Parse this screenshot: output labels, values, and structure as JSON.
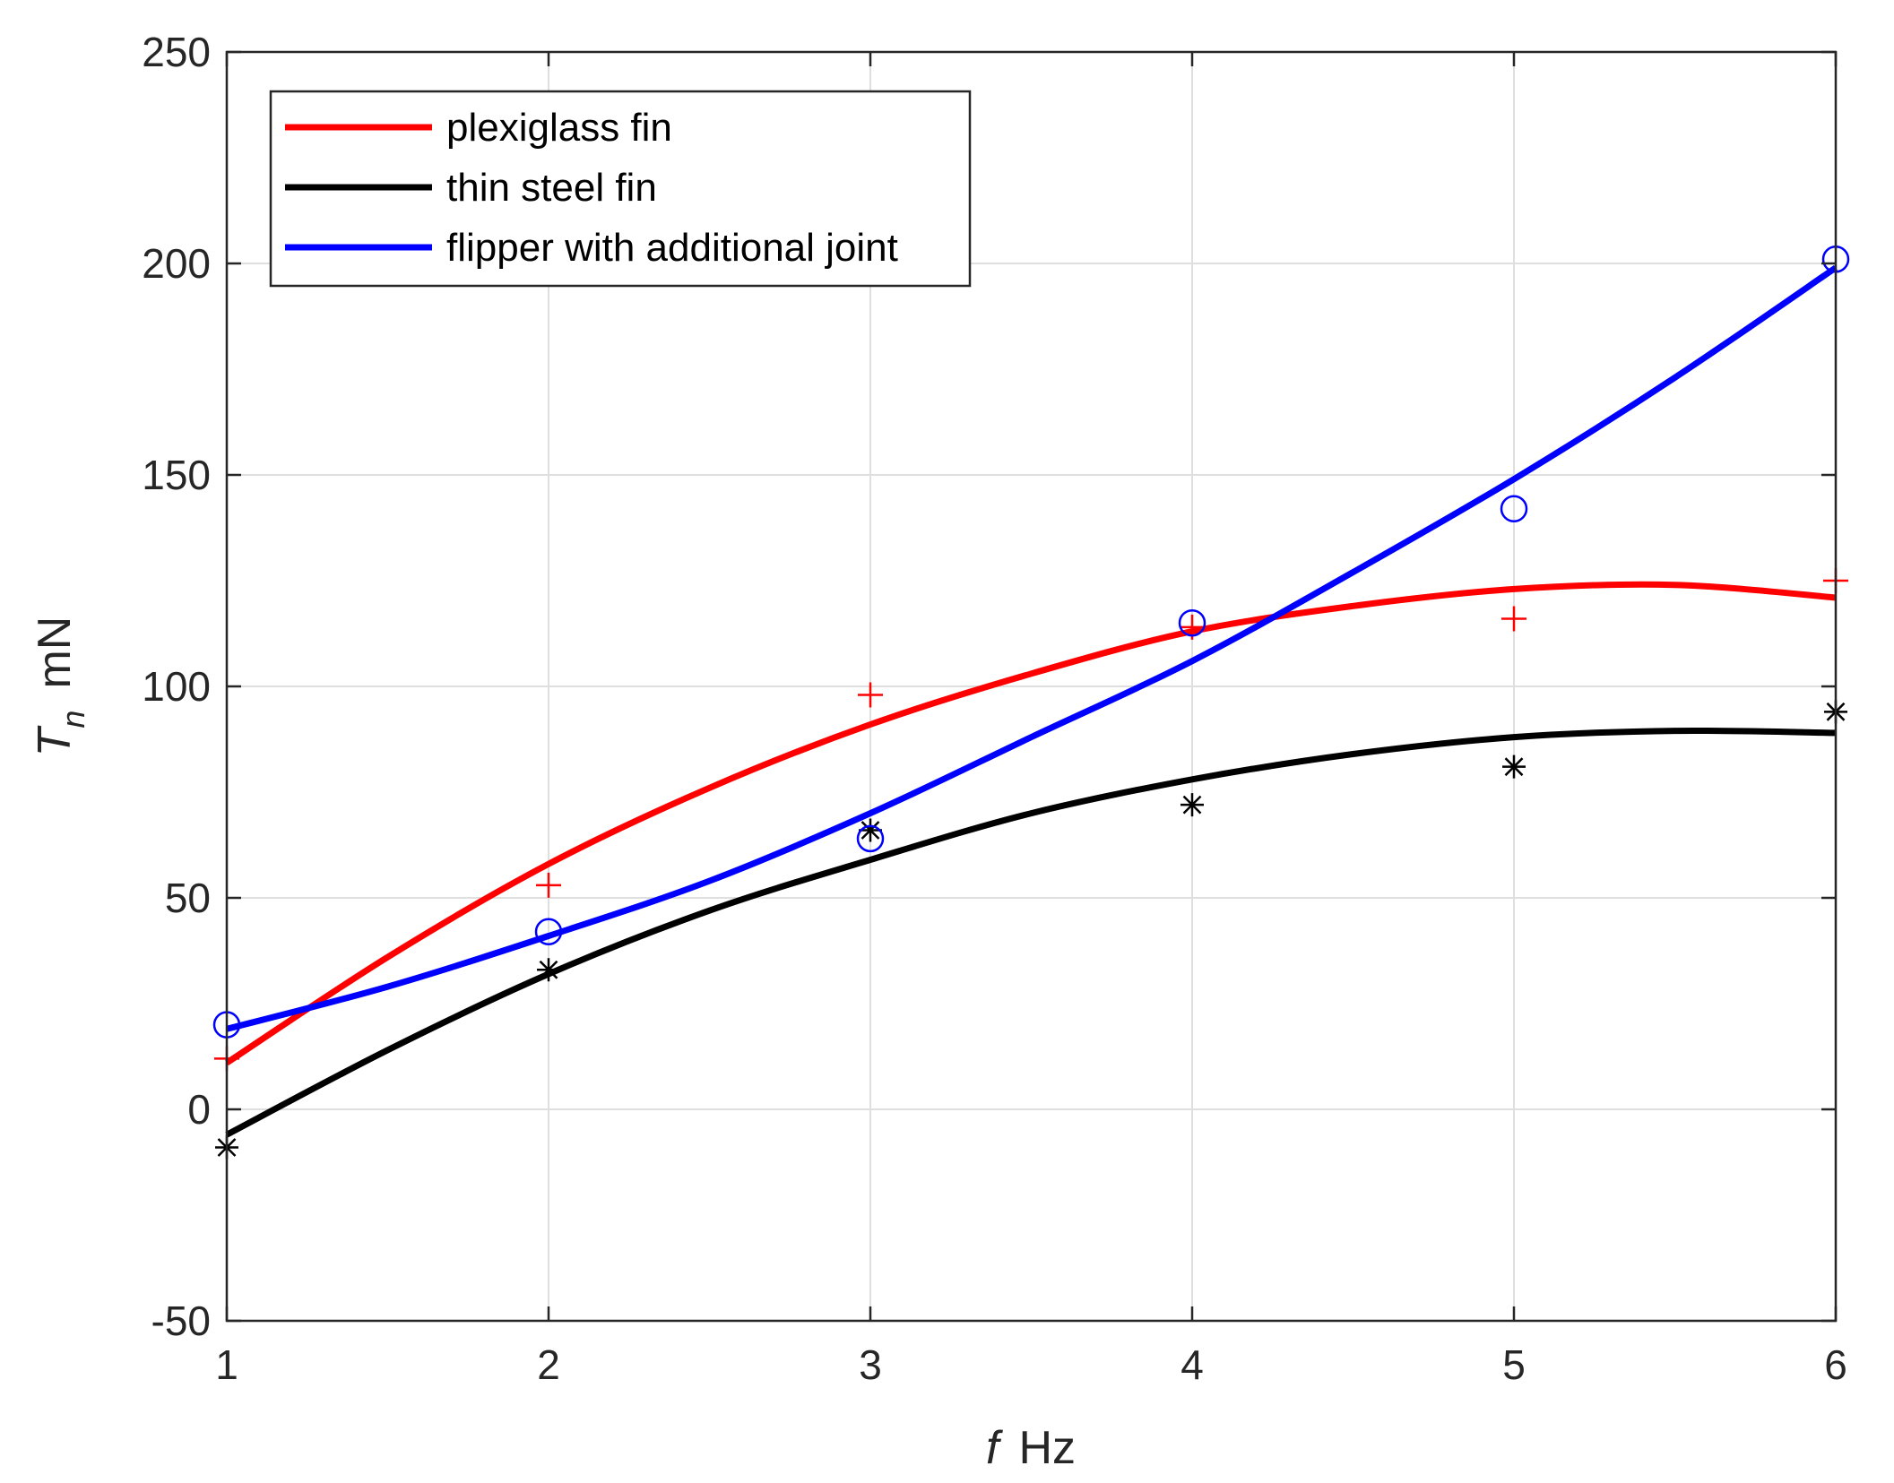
{
  "chart_data": {
    "type": "line",
    "x_ticks": [
      "1",
      "2",
      "3",
      "4",
      "5",
      "6"
    ],
    "y_ticks": [
      "-50",
      "0",
      "50",
      "100",
      "150",
      "200",
      "250"
    ],
    "xlim": [
      1,
      6
    ],
    "ylim": [
      -50,
      250
    ],
    "grid": true,
    "legend_position": "top-left",
    "xlabel": {
      "symbol": "f",
      "unit": "Hz"
    },
    "ylabel": {
      "symbol": "T",
      "subscript": "n",
      "unit": "mN"
    },
    "series": [
      {
        "name": "plexiglass fin",
        "color": "#ff0000",
        "marker": "plus",
        "points": {
          "x": [
            1,
            2,
            3,
            4,
            5,
            6
          ],
          "y": [
            12,
            53,
            98,
            114,
            116,
            125
          ]
        },
        "fit": [
          [
            1,
            11
          ],
          [
            1.5,
            36
          ],
          [
            2,
            58
          ],
          [
            2.5,
            76
          ],
          [
            3,
            91
          ],
          [
            3.5,
            103
          ],
          [
            4,
            113
          ],
          [
            4.5,
            119
          ],
          [
            5,
            123
          ],
          [
            5.5,
            124
          ],
          [
            6,
            121
          ]
        ]
      },
      {
        "name": "thin steel fin",
        "color": "#000000",
        "marker": "asterisk",
        "points": {
          "x": [
            1,
            2,
            3,
            4,
            5,
            6
          ],
          "y": [
            -9,
            33,
            66,
            72,
            81,
            94
          ]
        },
        "fit": [
          [
            1,
            -6
          ],
          [
            1.5,
            14
          ],
          [
            2,
            32
          ],
          [
            2.5,
            47
          ],
          [
            3,
            59
          ],
          [
            3.5,
            70
          ],
          [
            4,
            78
          ],
          [
            4.5,
            84
          ],
          [
            5,
            88
          ],
          [
            5.5,
            89.5
          ],
          [
            6,
            89
          ]
        ]
      },
      {
        "name": "flipper with additional joint",
        "color": "#0000ff",
        "marker": "circle",
        "points": {
          "x": [
            1,
            2,
            3,
            4,
            5,
            6
          ],
          "y": [
            20,
            42,
            64,
            115,
            142,
            201
          ]
        },
        "fit": [
          [
            1,
            19
          ],
          [
            1.5,
            29
          ],
          [
            2,
            41
          ],
          [
            2.5,
            54
          ],
          [
            3,
            70
          ],
          [
            3.5,
            88
          ],
          [
            4,
            106
          ],
          [
            4.5,
            127
          ],
          [
            5,
            149
          ],
          [
            5.5,
            173
          ],
          [
            6,
            199
          ]
        ]
      }
    ]
  }
}
